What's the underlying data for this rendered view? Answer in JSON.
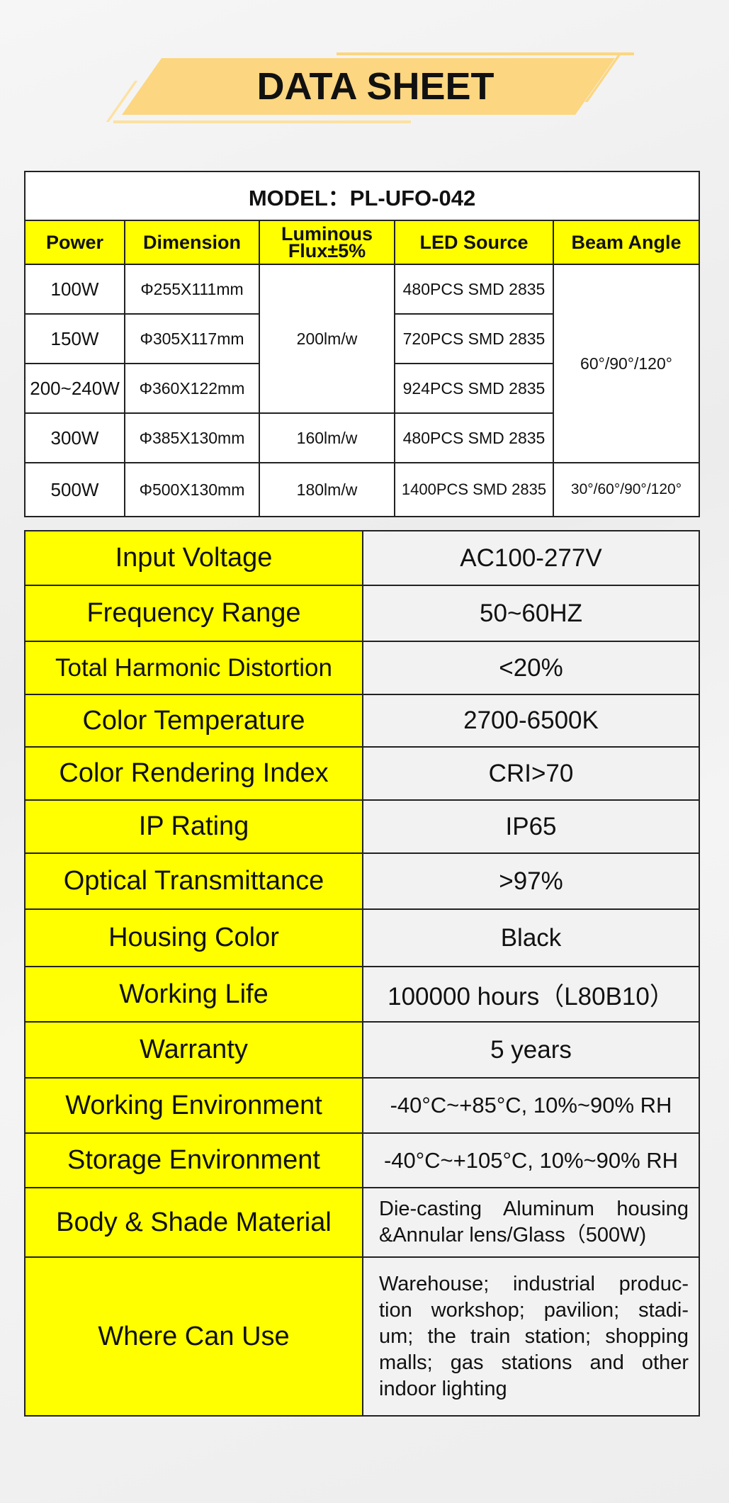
{
  "title": "DATA SHEET",
  "model_label": "MODEL：PL-UFO-042",
  "spec_table": {
    "headers": [
      "Power",
      "Dimension",
      "Luminous Flux±5%",
      "LED Source",
      "Beam Angle"
    ],
    "header_flux_line1": "Luminous",
    "header_flux_line2": "Flux±5%",
    "rows": [
      {
        "power": "100W",
        "dimension": "Φ255X111mm",
        "led": "480PCS SMD 2835"
      },
      {
        "power": "150W",
        "dimension": "Φ305X117mm",
        "led": "720PCS SMD 2835"
      },
      {
        "power": "200~240W",
        "dimension": "Φ360X122mm",
        "led": "924PCS SMD 2835"
      },
      {
        "power": "300W",
        "dimension": "Φ385X130mm",
        "led": "480PCS SMD 2835"
      },
      {
        "power": "500W",
        "dimension": "Φ500X130mm",
        "led": "1400PCS SMD 2835"
      }
    ],
    "flux": [
      "200lm/w",
      "160lm/w",
      "180lm/w"
    ],
    "beam": [
      "60°/90°/120°",
      "30°/60°/90°/120°"
    ]
  },
  "params": [
    {
      "label": "Input Voltage",
      "value": "AC100-277V"
    },
    {
      "label": "Frequency Range",
      "value": "50~60HZ"
    },
    {
      "label": "Total Harmonic Distortion",
      "value": "<20%"
    },
    {
      "label": "Color Temperature",
      "value": "2700-6500K"
    },
    {
      "label": "Color Rendering Index",
      "value": "CRI>70"
    },
    {
      "label": "IP Rating",
      "value": "IP65"
    },
    {
      "label": "Optical Transmittance",
      "value": ">97%"
    },
    {
      "label": "Housing Color",
      "value": "Black"
    },
    {
      "label": "Working Life",
      "value": "100000 hours（L80B10）"
    },
    {
      "label": "Warranty",
      "value": "5 years"
    },
    {
      "label": "Working Environment",
      "value": "-40°C~+85°C, 10%~90% RH"
    },
    {
      "label": "Storage Environment",
      "value": "-40°C~+105°C, 10%~90% RH"
    },
    {
      "label": "Body & Shade Material",
      "lines": [
        "Die-casting Aluminum housing",
        "&Annular lens/Glass（500W)"
      ]
    },
    {
      "label": "Where Can Use",
      "lines": [
        "Warehouse; industrial produc-",
        "tion workshop; pavilion; stadi-",
        "um; the train station; shopping",
        "malls; gas stations and other",
        "indoor lighting"
      ]
    }
  ],
  "colors": {
    "highlight": "#ffff00",
    "banner": "#fcd680",
    "background": "#efefef"
  }
}
